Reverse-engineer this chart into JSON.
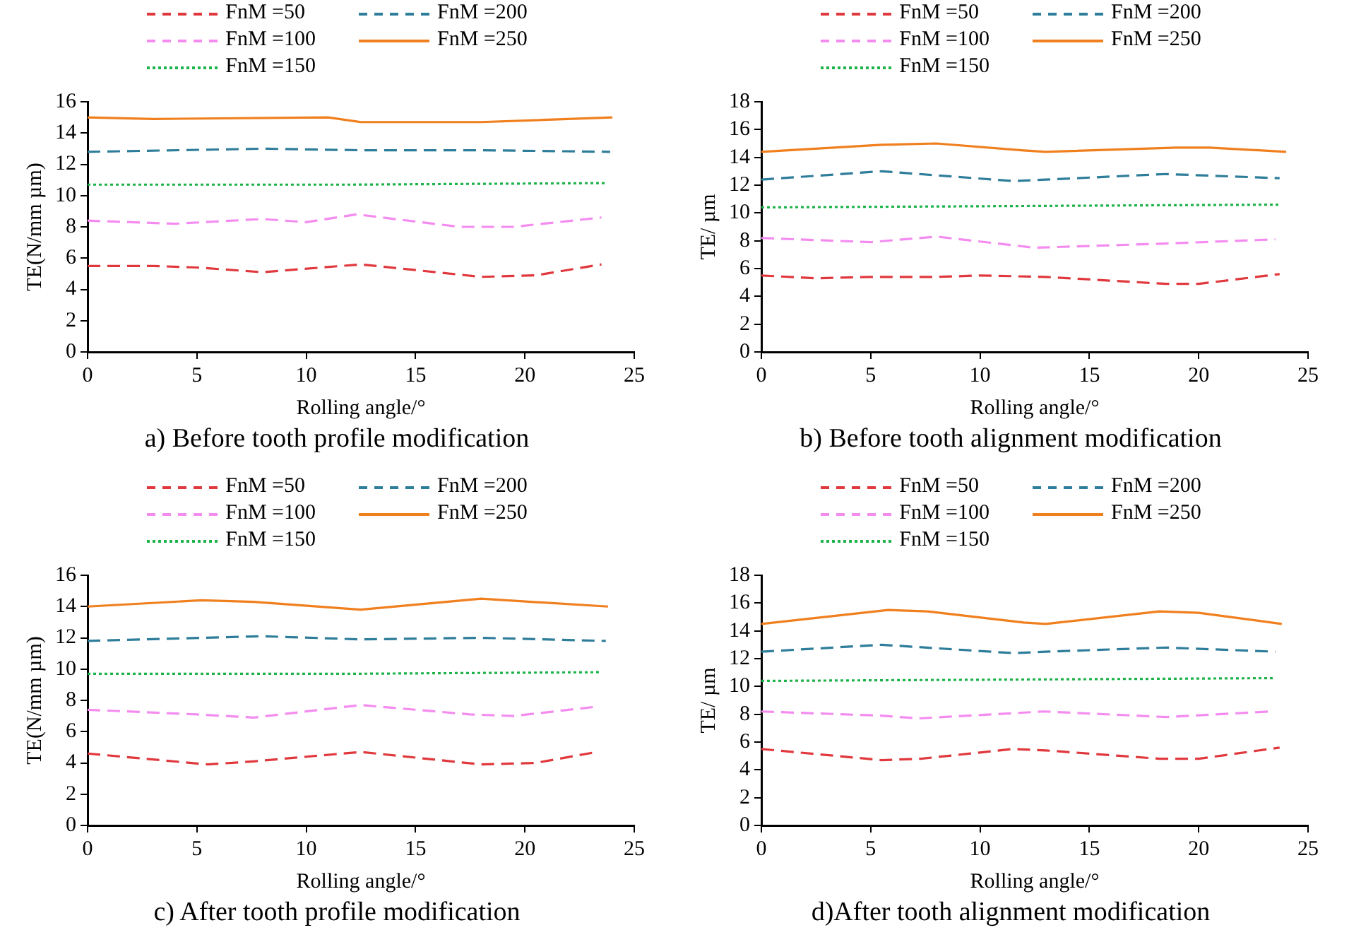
{
  "chart_data": [
    {
      "type": "line",
      "title": "a) Before tooth profile modification",
      "xlabel": "Rolling angle/°",
      "ylabel": "TE(N/mm µm)",
      "xlim": [
        0,
        25
      ],
      "xticks": [
        0,
        5,
        10,
        15,
        20,
        25
      ],
      "ylim": [
        0,
        16
      ],
      "yticks": [
        0,
        2,
        4,
        6,
        8,
        10,
        12,
        14,
        16
      ],
      "grid": false,
      "legend": "top",
      "marker": "none",
      "series": [
        {
          "name": "FnM =50",
          "color": "#e0383c",
          "line_style": "dashed",
          "x": [
            0,
            3,
            5,
            8,
            12.5,
            18,
            20.5,
            23.5
          ],
          "values": [
            5.5,
            5.5,
            5.4,
            5.1,
            5.6,
            4.8,
            4.9,
            5.6
          ]
        },
        {
          "name": "FnM =100",
          "color": "#f48cf0",
          "line_style": "dashed",
          "x": [
            0,
            4,
            8,
            10,
            12.3,
            17,
            19.5,
            23.5
          ],
          "values": [
            8.4,
            8.2,
            8.5,
            8.3,
            8.8,
            8.0,
            8.0,
            8.6
          ]
        },
        {
          "name": "FnM =150",
          "color": "#1db34a",
          "line_style": "dotted",
          "x": [
            0,
            12,
            23.7
          ],
          "values": [
            10.7,
            10.7,
            10.8
          ]
        },
        {
          "name": "FnM =200",
          "color": "#2e7d9a",
          "line_style": "dashed",
          "x": [
            0,
            8,
            12.5,
            18,
            23.9
          ],
          "values": [
            12.8,
            13.0,
            12.9,
            12.9,
            12.8
          ]
        },
        {
          "name": "FnM =250",
          "color": "#f07f1e",
          "line_style": "solid",
          "x": [
            0,
            3,
            11,
            12.5,
            18,
            24
          ],
          "values": [
            15.0,
            14.9,
            15.0,
            14.7,
            14.7,
            15.0
          ]
        }
      ]
    },
    {
      "type": "line",
      "title": "b) Before tooth alignment modification",
      "xlabel": "Rolling angle/°",
      "ylabel": "TE/ µm",
      "xlim": [
        0,
        25
      ],
      "xticks": [
        0,
        5,
        10,
        15,
        20,
        25
      ],
      "ylim": [
        0,
        18
      ],
      "yticks": [
        0,
        2,
        4,
        6,
        8,
        10,
        12,
        14,
        16,
        18
      ],
      "grid": false,
      "legend": "top",
      "marker": "none",
      "series": [
        {
          "name": "FnM =50",
          "color": "#e0383c",
          "line_style": "dashed",
          "x": [
            0,
            2.5,
            5,
            8,
            10,
            13,
            18.5,
            20,
            23.7
          ],
          "values": [
            5.5,
            5.3,
            5.4,
            5.4,
            5.5,
            5.4,
            4.9,
            4.9,
            5.6
          ]
        },
        {
          "name": "FnM =100",
          "color": "#f48cf0",
          "line_style": "dashed",
          "x": [
            0,
            5,
            8,
            12.5,
            18.5,
            23.5
          ],
          "values": [
            8.2,
            7.9,
            8.3,
            7.5,
            7.8,
            8.1
          ]
        },
        {
          "name": "FnM =150",
          "color": "#1db34a",
          "line_style": "dotted",
          "x": [
            0,
            12,
            23.7
          ],
          "values": [
            10.4,
            10.5,
            10.6
          ]
        },
        {
          "name": "FnM =200",
          "color": "#2e7d9a",
          "line_style": "dashed",
          "x": [
            0,
            5.5,
            11.5,
            13,
            18.5,
            23.7
          ],
          "values": [
            12.4,
            13.0,
            12.3,
            12.4,
            12.8,
            12.5
          ]
        },
        {
          "name": "FnM =250",
          "color": "#f07f1e",
          "line_style": "solid",
          "x": [
            0,
            5.5,
            8,
            12,
            13,
            19,
            20.5,
            24
          ],
          "values": [
            14.4,
            14.9,
            15.0,
            14.5,
            14.4,
            14.7,
            14.7,
            14.4
          ]
        }
      ]
    },
    {
      "type": "line",
      "title": "c) After tooth profile modification",
      "xlabel": "Rolling angle/°",
      "ylabel": "TE(N/mm µm)",
      "xlim": [
        0,
        25
      ],
      "xticks": [
        0,
        5,
        10,
        15,
        20,
        25
      ],
      "ylim": [
        0,
        16
      ],
      "yticks": [
        0,
        2,
        4,
        6,
        8,
        10,
        12,
        14,
        16
      ],
      "grid": false,
      "legend": "top",
      "marker": "none",
      "series": [
        {
          "name": "FnM =50",
          "color": "#e0383c",
          "line_style": "dashed",
          "x": [
            0,
            5.5,
            7.6,
            12.5,
            18,
            20.5,
            23.3
          ],
          "values": [
            4.6,
            3.9,
            4.1,
            4.7,
            3.9,
            4.0,
            4.7
          ]
        },
        {
          "name": "FnM =100",
          "color": "#f48cf0",
          "line_style": "dashed",
          "x": [
            0,
            5,
            7.6,
            12.5,
            17.5,
            19.5,
            23.3
          ],
          "values": [
            7.4,
            7.1,
            6.9,
            7.7,
            7.1,
            7.0,
            7.6
          ]
        },
        {
          "name": "FnM =150",
          "color": "#1db34a",
          "line_style": "dotted",
          "x": [
            0,
            12,
            23.5
          ],
          "values": [
            9.7,
            9.7,
            9.8
          ]
        },
        {
          "name": "FnM =200",
          "color": "#2e7d9a",
          "line_style": "dashed",
          "x": [
            0,
            8,
            12.5,
            18,
            23.7
          ],
          "values": [
            11.8,
            12.1,
            11.9,
            12.0,
            11.8
          ]
        },
        {
          "name": "FnM =250",
          "color": "#f07f1e",
          "line_style": "solid",
          "x": [
            0,
            5.2,
            7.6,
            12.5,
            18,
            23.8
          ],
          "values": [
            14.0,
            14.4,
            14.3,
            13.8,
            14.5,
            14.0
          ]
        }
      ]
    },
    {
      "type": "line",
      "title": "d)After tooth alignment modification",
      "xlabel": "Rolling angle/°",
      "ylabel": "TE/ µm",
      "xlim": [
        0,
        25
      ],
      "xticks": [
        0,
        5,
        10,
        15,
        20,
        25
      ],
      "ylim": [
        0,
        18
      ],
      "yticks": [
        0,
        2,
        4,
        6,
        8,
        10,
        12,
        14,
        16,
        18
      ],
      "grid": false,
      "legend": "top",
      "marker": "none",
      "series": [
        {
          "name": "FnM =50",
          "color": "#e0383c",
          "line_style": "dashed",
          "x": [
            0,
            5.5,
            7.3,
            11.5,
            13,
            18.2,
            20,
            23.7
          ],
          "values": [
            5.5,
            4.7,
            4.8,
            5.5,
            5.4,
            4.8,
            4.8,
            5.6
          ]
        },
        {
          "name": "FnM =100",
          "color": "#f48cf0",
          "line_style": "dashed",
          "x": [
            0,
            5.5,
            7.2,
            12.9,
            18.5,
            23.3
          ],
          "values": [
            8.2,
            7.9,
            7.7,
            8.2,
            7.8,
            8.2
          ]
        },
        {
          "name": "FnM =150",
          "color": "#1db34a",
          "line_style": "dotted",
          "x": [
            0,
            12,
            23.5
          ],
          "values": [
            10.4,
            10.5,
            10.6
          ]
        },
        {
          "name": "FnM =200",
          "color": "#2e7d9a",
          "line_style": "dashed",
          "x": [
            0,
            5.5,
            11.5,
            13,
            18.5,
            23.5
          ],
          "values": [
            12.5,
            13.0,
            12.4,
            12.5,
            12.8,
            12.5
          ]
        },
        {
          "name": "FnM =250",
          "color": "#f07f1e",
          "line_style": "solid",
          "x": [
            0,
            5.8,
            7.6,
            12,
            13,
            18.2,
            20,
            23.8
          ],
          "values": [
            14.5,
            15.5,
            15.4,
            14.6,
            14.5,
            15.4,
            15.3,
            14.5
          ]
        }
      ]
    }
  ]
}
